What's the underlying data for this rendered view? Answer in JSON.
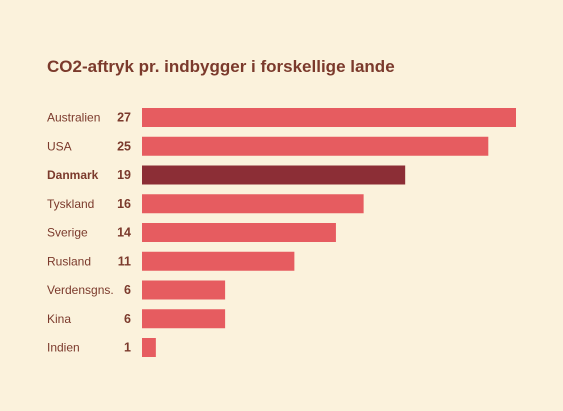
{
  "chart_data": {
    "type": "bar",
    "orientation": "horizontal",
    "title": "CO2-aftryk pr. indbygger i forskellige lande",
    "categories": [
      "Australien",
      "USA",
      "Danmark",
      "Tyskland",
      "Sverige",
      "Rusland",
      "Verdensgns.",
      "Kina",
      "Indien"
    ],
    "values": [
      27,
      25,
      19,
      16,
      14,
      11,
      6,
      6,
      1
    ],
    "highlight": "Danmark",
    "xlim": [
      0,
      27
    ],
    "grid": false,
    "legend": "none",
    "colors": {
      "bar": "#e65c60",
      "highlight_bar": "#8c2e36",
      "text": "#7b3a2c",
      "background": "#fbf2dc"
    }
  }
}
